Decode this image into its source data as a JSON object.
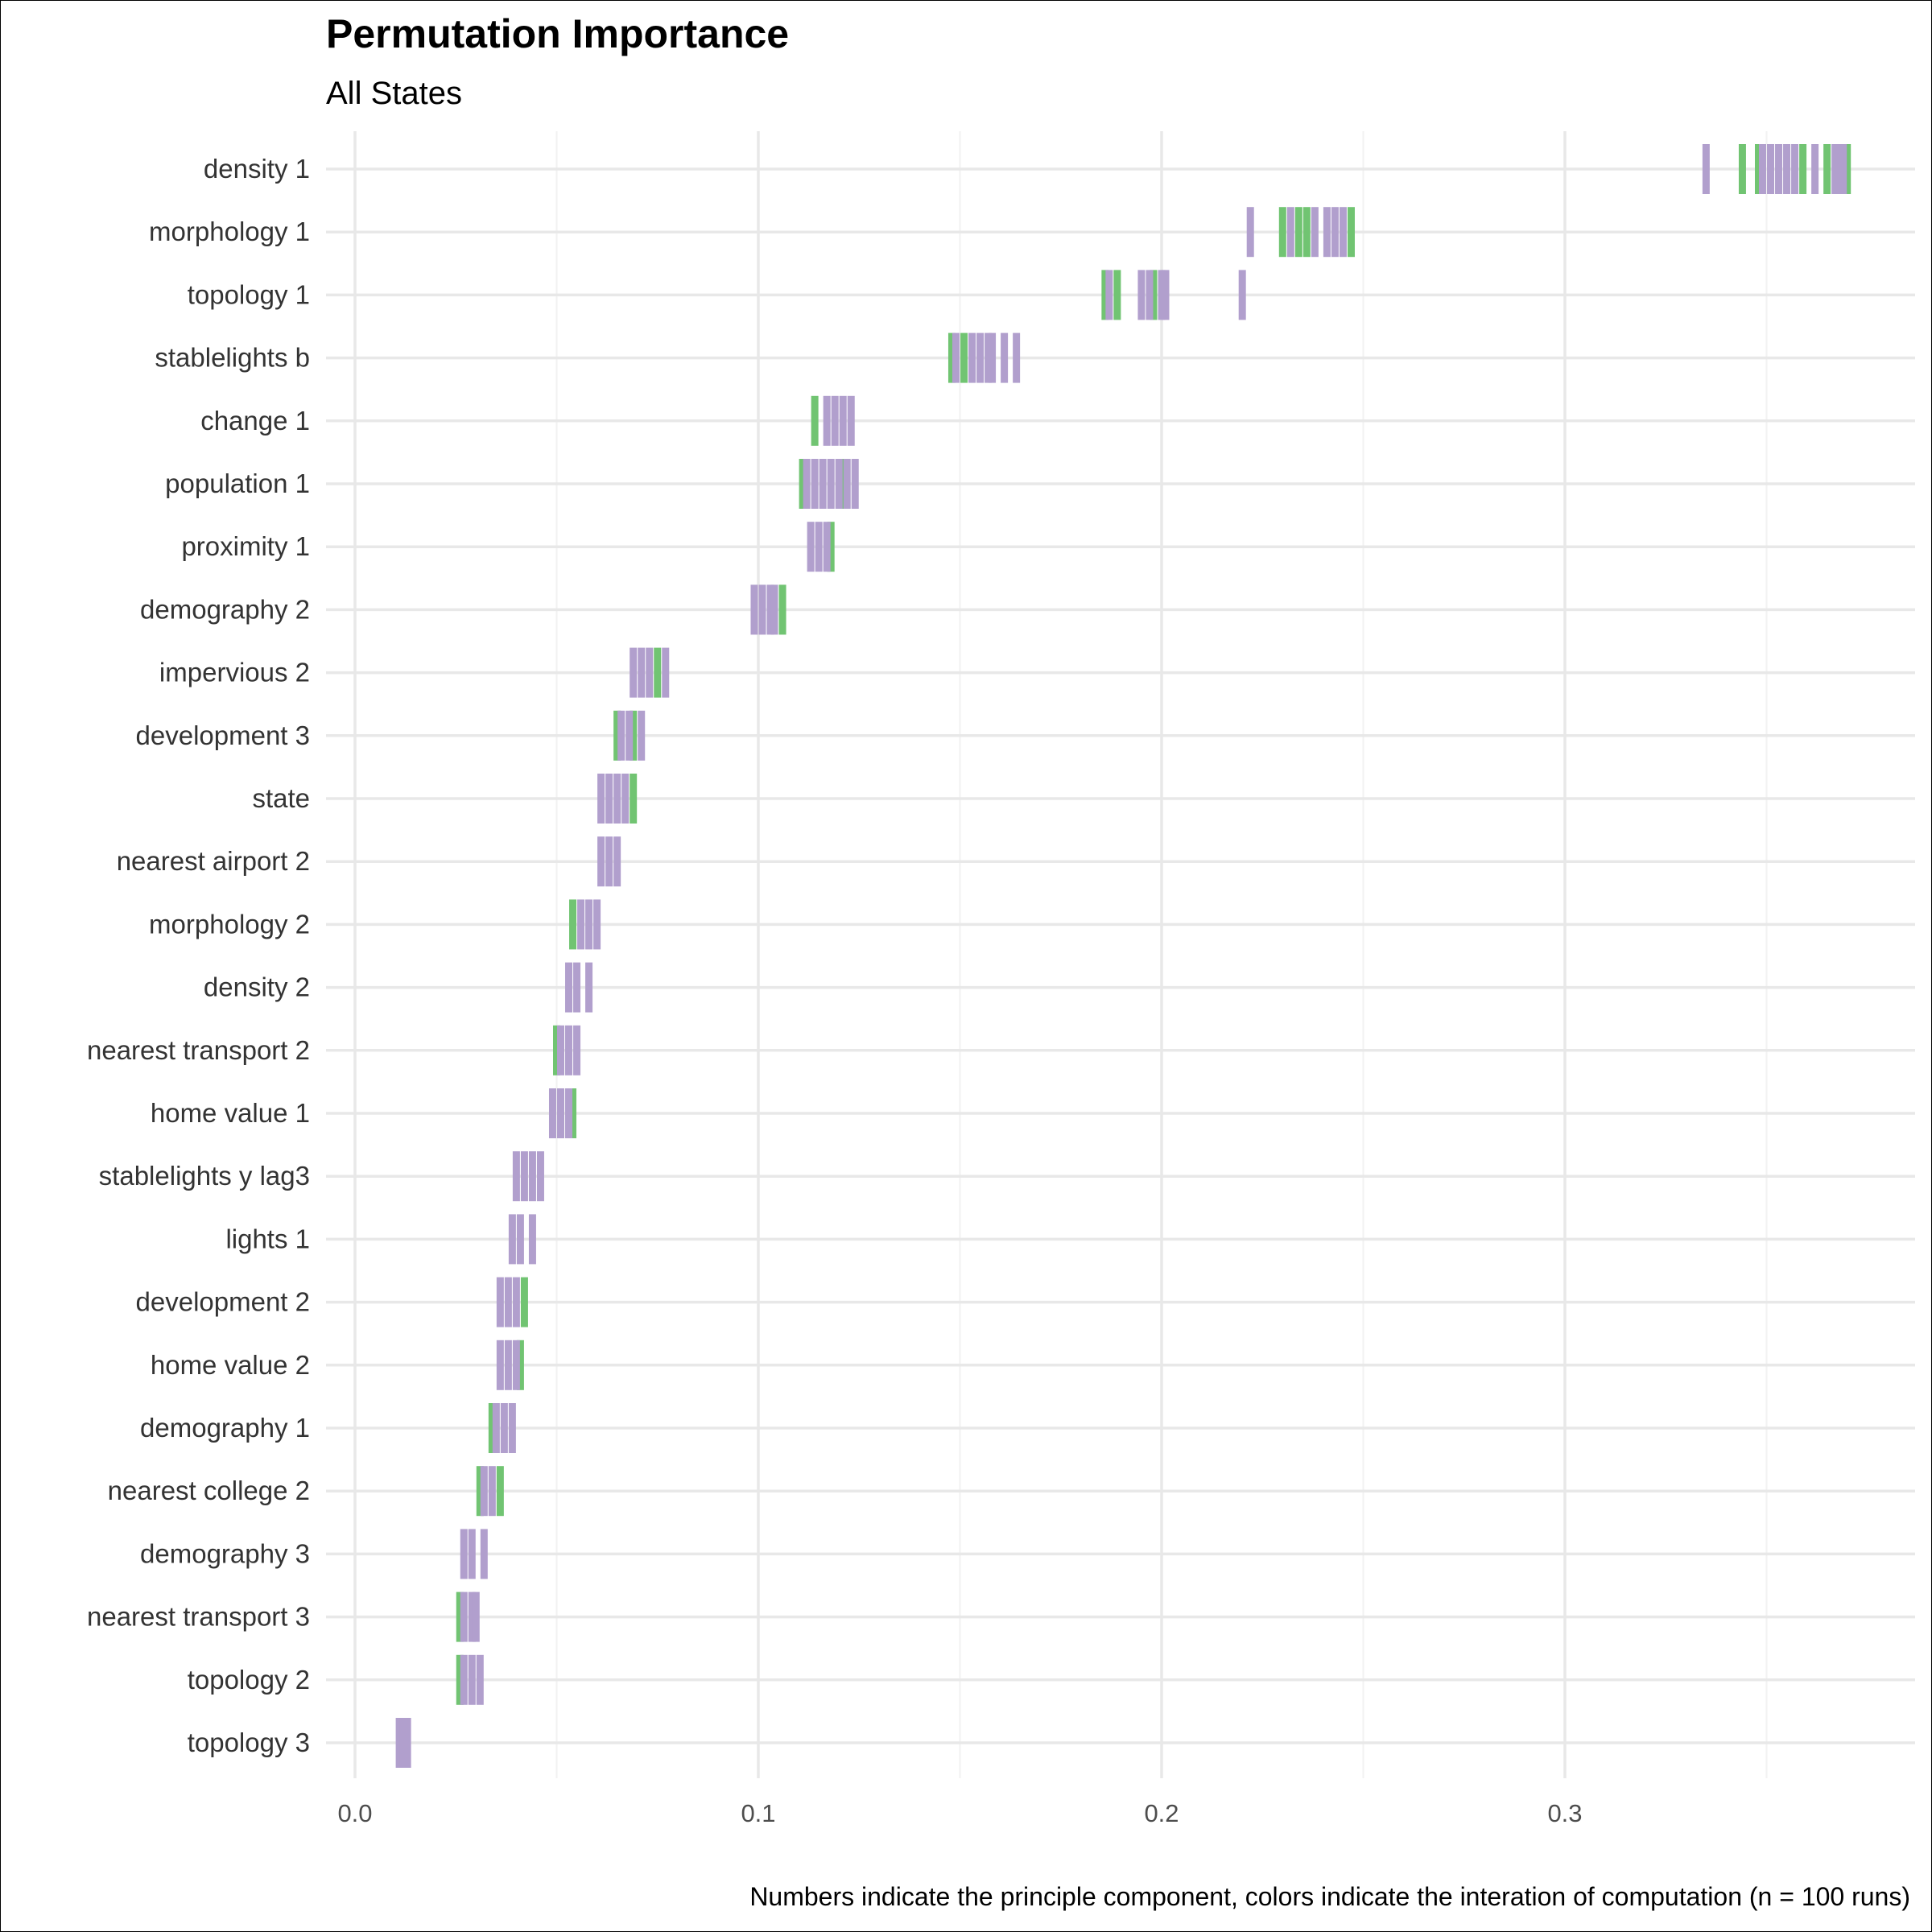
{
  "chart_data": {
    "type": "scatter",
    "title": "Permutation Importance",
    "subtitle": "All States",
    "caption": "Numbers indicate the principle component, colors indicate the interation of computation (n = 100 runs)",
    "xlabel": "",
    "ylabel": "",
    "xlim": [
      -0.007,
      0.387
    ],
    "x_ticks": [
      0.0,
      0.1,
      0.2,
      0.3
    ],
    "x_tick_labels": [
      "0.0",
      "0.1",
      "0.2",
      "0.3"
    ],
    "grid": true,
    "legend": "none",
    "series_colors": {
      "green": "#71c472",
      "purple": "#b19fcd"
    },
    "categories": [
      "density 1",
      "morphology 1",
      "topology 1",
      "stablelights b",
      "change 1",
      "population 1",
      "proximity 1",
      "demography 2",
      "impervious 2",
      "development 3",
      "state",
      "nearest airport 2",
      "morphology 2",
      "density 2",
      "nearest transport 2",
      "home value 1",
      "stablelights y lag3",
      "lights 1",
      "development 2",
      "home value 2",
      "demography 1",
      "nearest college 2",
      "demography 3",
      "nearest transport 3",
      "topology 2",
      "topology 3"
    ],
    "points": [
      {
        "category": "density 1",
        "purple": [
          0.335,
          0.349,
          0.351,
          0.353,
          0.355,
          0.357,
          0.362,
          0.367,
          0.368,
          0.369
        ],
        "green": [
          0.344,
          0.348,
          0.359,
          0.365,
          0.37
        ]
      },
      {
        "category": "morphology 1",
        "purple": [
          0.222,
          0.232,
          0.238,
          0.241,
          0.243,
          0.245
        ],
        "green": [
          0.23,
          0.234,
          0.236,
          0.247
        ]
      },
      {
        "category": "topology 1",
        "purple": [
          0.187,
          0.195,
          0.197,
          0.2,
          0.201,
          0.22
        ],
        "green": [
          0.186,
          0.189,
          0.198
        ]
      },
      {
        "category": "stablelights b",
        "purple": [
          0.149,
          0.153,
          0.155,
          0.157,
          0.158,
          0.161,
          0.164
        ],
        "green": [
          0.148,
          0.151
        ]
      },
      {
        "category": "change 1",
        "purple": [
          0.117,
          0.119,
          0.121,
          0.123
        ],
        "green": [
          0.114
        ]
      },
      {
        "category": "population 1",
        "purple": [
          0.112,
          0.114,
          0.116,
          0.118,
          0.12,
          0.122,
          0.124
        ],
        "green": [
          0.111,
          0.121
        ]
      },
      {
        "category": "proximity 1",
        "purple": [
          0.113,
          0.115,
          0.117
        ],
        "green": [
          0.118
        ]
      },
      {
        "category": "demography 2",
        "purple": [
          0.099,
          0.101,
          0.103,
          0.104
        ],
        "green": [
          0.106
        ]
      },
      {
        "category": "impervious 2",
        "purple": [
          0.069,
          0.071,
          0.073,
          0.077
        ],
        "green": [
          0.075
        ]
      },
      {
        "category": "development 3",
        "purple": [
          0.066,
          0.068,
          0.071
        ],
        "green": [
          0.065,
          0.069
        ]
      },
      {
        "category": "state",
        "purple": [
          0.061,
          0.063,
          0.065,
          0.067
        ],
        "green": [
          0.069
        ]
      },
      {
        "category": "nearest airport 2",
        "purple": [
          0.061,
          0.063,
          0.065
        ],
        "green": []
      },
      {
        "category": "morphology 2",
        "purple": [
          0.056,
          0.058,
          0.06
        ],
        "green": [
          0.054
        ]
      },
      {
        "category": "density 2",
        "purple": [
          0.053,
          0.055,
          0.058
        ],
        "green": []
      },
      {
        "category": "nearest transport 2",
        "purple": [
          0.051,
          0.053,
          0.055
        ],
        "green": [
          0.05
        ]
      },
      {
        "category": "home value 1",
        "purple": [
          0.049,
          0.051,
          0.053
        ],
        "green": [
          0.054
        ]
      },
      {
        "category": "stablelights y lag3",
        "purple": [
          0.04,
          0.042,
          0.044,
          0.046
        ],
        "green": []
      },
      {
        "category": "lights 1",
        "purple": [
          0.039,
          0.041,
          0.044
        ],
        "green": []
      },
      {
        "category": "development 2",
        "purple": [
          0.036,
          0.038,
          0.04
        ],
        "green": [
          0.042
        ]
      },
      {
        "category": "home value 2",
        "purple": [
          0.036,
          0.038,
          0.04
        ],
        "green": [
          0.041
        ]
      },
      {
        "category": "demography 1",
        "purple": [
          0.035,
          0.037,
          0.039
        ],
        "green": [
          0.034
        ]
      },
      {
        "category": "nearest college 2",
        "purple": [
          0.032,
          0.034
        ],
        "green": [
          0.031,
          0.036
        ]
      },
      {
        "category": "demography 3",
        "purple": [
          0.027,
          0.029,
          0.032
        ],
        "green": []
      },
      {
        "category": "nearest transport 3",
        "purple": [
          0.027,
          0.029,
          0.03
        ],
        "green": [
          0.026
        ]
      },
      {
        "category": "topology 2",
        "purple": [
          0.027,
          0.029,
          0.031
        ],
        "green": [
          0.026
        ]
      },
      {
        "category": "topology 3",
        "purple": [
          0.011,
          0.012,
          0.013
        ],
        "green": []
      }
    ]
  }
}
